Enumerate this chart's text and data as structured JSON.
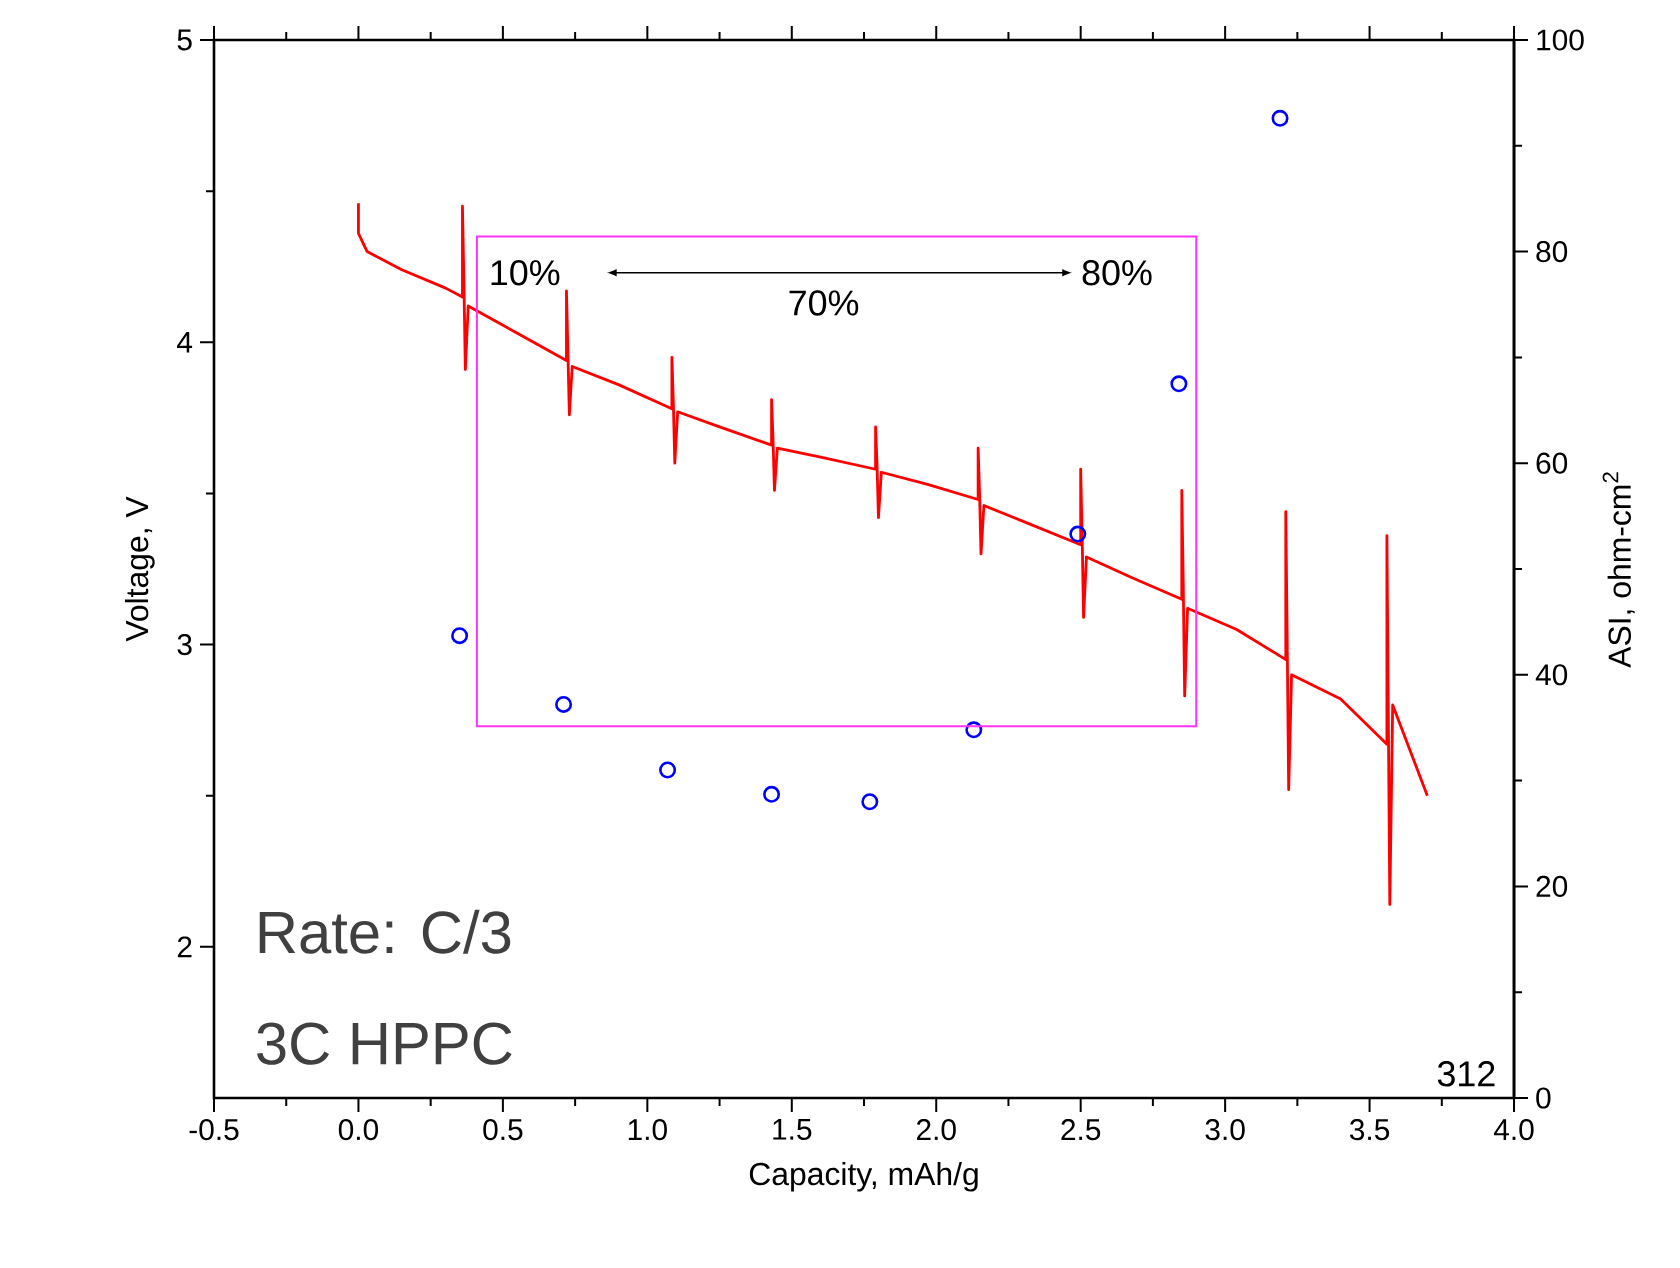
{
  "chart_data": {
    "type": "line",
    "xlabel": "Capacity, mAh/g",
    "ylabel": "Voltage, V",
    "y2label": "ASI, ohm-cm$^{2}$",
    "xlim": [
      -0.5,
      4.0
    ],
    "xticks": [
      {
        "value": -0.5,
        "label": "-0.5"
      },
      {
        "value": 0,
        "label": "0.0"
      },
      0.5,
      {
        "value": 1,
        "label": "1.0"
      },
      1.5,
      {
        "value": 2,
        "label": "2.0"
      },
      2.5,
      {
        "value": 3,
        "label": "3.0"
      },
      3.5,
      {
        "value": 4,
        "label": "4.0"
      }
    ],
    "ylim": [
      1.5,
      5
    ],
    "yticks": [
      2,
      3,
      4,
      5
    ],
    "y2lim": [
      0,
      100
    ],
    "y2ticks": [
      0,
      20,
      40,
      60,
      80,
      100
    ],
    "annotations": [
      "10%",
      "70%",
      "80%",
      "Rate: C/3",
      "3C HPPC",
      "312"
    ],
    "series": [
      {
        "color": "#ff0000",
        "marker": "none",
        "x": [
          0.0,
          0.0,
          0.03,
          0.15,
          0.3,
          0.36,
          0.36,
          0.365,
          0.37,
          0.38,
          0.55,
          0.72,
          0.72,
          0.725,
          0.73,
          0.74,
          0.9,
          1.085,
          1.085,
          1.09,
          1.095,
          1.105,
          1.25,
          1.43,
          1.43,
          1.435,
          1.44,
          1.45,
          1.6,
          1.79,
          1.79,
          1.795,
          1.8,
          1.81,
          1.97,
          2.145,
          2.145,
          2.15,
          2.155,
          2.165,
          2.32,
          2.5,
          2.5,
          2.505,
          2.51,
          2.52,
          2.68,
          2.85,
          2.85,
          2.855,
          2.86,
          2.87,
          3.04,
          3.21,
          3.21,
          3.215,
          3.22,
          3.23,
          3.4,
          3.56,
          3.56,
          3.565,
          3.57,
          3.58,
          3.7
        ],
        "values": [
          4.46,
          4.36,
          4.3,
          4.24,
          4.18,
          4.15,
          4.45,
          4.2,
          3.91,
          4.12,
          4.03,
          3.94,
          4.17,
          3.97,
          3.76,
          3.92,
          3.86,
          3.78,
          3.95,
          3.8,
          3.6,
          3.77,
          3.72,
          3.66,
          3.81,
          3.68,
          3.51,
          3.65,
          3.62,
          3.58,
          3.72,
          3.6,
          3.42,
          3.57,
          3.53,
          3.48,
          3.65,
          3.5,
          3.3,
          3.46,
          3.4,
          3.33,
          3.58,
          3.36,
          3.09,
          3.29,
          3.22,
          3.15,
          3.51,
          3.2,
          2.83,
          3.12,
          3.05,
          2.95,
          3.44,
          3.0,
          2.52,
          2.9,
          2.82,
          2.67,
          3.36,
          2.75,
          2.14,
          2.8,
          2.5
        ]
      },
      {
        "type": "scatter",
        "axis": "y2",
        "color": "#0000ff",
        "marker": "circle",
        "x": [
          0.35,
          0.71,
          1.07,
          1.43,
          1.77,
          2.13,
          2.49,
          2.84,
          3.19
        ],
        "values": [
          43.7,
          37.2,
          31.0,
          28.7,
          28.0,
          34.8,
          53.3,
          67.5,
          92.6
        ]
      }
    ]
  }
}
